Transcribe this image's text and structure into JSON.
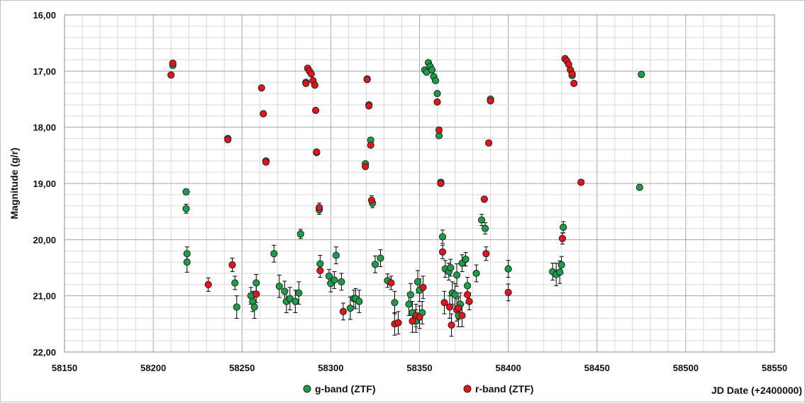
{
  "chart_data": {
    "type": "scatter",
    "title": "",
    "xlabel": "JD Date (+2400000)",
    "ylabel": "Magnitude (g/r)",
    "xlim": [
      58150,
      58550
    ],
    "ylim": [
      16,
      22
    ],
    "y_inverted": true,
    "x_ticks": [
      "58150",
      "58200",
      "58250",
      "58300",
      "58350",
      "58400",
      "58450",
      "58500",
      "58550"
    ],
    "y_ticks": [
      "16,00",
      "17,00",
      "18,00",
      "19,00",
      "20,00",
      "21,00",
      "22,00"
    ],
    "grid": true,
    "legend_position": "bottom-center",
    "colors": {
      "g": "#1a9e4a",
      "r": "#e3151a",
      "marker_edge": "#222222",
      "grid": "#bfbfbf"
    },
    "series": [
      {
        "name": "g-band (ZTF)",
        "color": "#1a9e4a",
        "points": [
          [
            58211,
            16.9,
            0
          ],
          [
            58218.5,
            19.15,
            0.05
          ],
          [
            58218.5,
            19.45,
            0.08
          ],
          [
            58219,
            20.25,
            0.12
          ],
          [
            58219,
            20.4,
            0.18
          ],
          [
            58242,
            18.2,
            0
          ],
          [
            58246,
            20.77,
            0.12
          ],
          [
            58247,
            21.2,
            0.2
          ],
          [
            58255,
            21.0,
            0.15
          ],
          [
            58256,
            21.1,
            0.18
          ],
          [
            58257,
            21.2,
            0.2
          ],
          [
            58258,
            20.77,
            0.15
          ],
          [
            58263.5,
            18.6,
            0
          ],
          [
            58268,
            20.25,
            0.15
          ],
          [
            58271,
            20.83,
            0.2
          ],
          [
            58274,
            20.92,
            0.18
          ],
          [
            58275,
            21.1,
            0.2
          ],
          [
            58277,
            21.05,
            0.2
          ],
          [
            58280,
            21.1,
            0.2
          ],
          [
            58282,
            20.95,
            0.2
          ],
          [
            58283,
            19.9,
            0.08
          ],
          [
            58286,
            17.2,
            0
          ],
          [
            58292,
            18.45,
            0
          ],
          [
            58293.5,
            19.47,
            0.08
          ],
          [
            58294,
            20.43,
            0.15
          ],
          [
            58299,
            20.65,
            0.12
          ],
          [
            58300,
            20.78,
            0.15
          ],
          [
            58302,
            20.72,
            0.15
          ],
          [
            58303,
            20.28,
            0.15
          ],
          [
            58306,
            20.75,
            0.15
          ],
          [
            58311,
            21.22,
            0.2
          ],
          [
            58313,
            21.05,
            0.15
          ],
          [
            58314,
            21.05,
            0.18
          ],
          [
            58316,
            21.1,
            0.2
          ],
          [
            58319.5,
            18.65,
            0
          ],
          [
            58320.5,
            17.14,
            0
          ],
          [
            58321.5,
            17.6,
            0
          ],
          [
            58322.5,
            18.23,
            0
          ],
          [
            58323.5,
            19.35,
            0.08
          ],
          [
            58325,
            20.44,
            0.15
          ],
          [
            58328,
            20.33,
            0.15
          ],
          [
            58332,
            20.73,
            0.12
          ],
          [
            58336,
            21.12,
            0.2
          ],
          [
            58344,
            21.15,
            0.2
          ],
          [
            58345,
            20.98,
            0.2
          ],
          [
            58346,
            21.3,
            0.2
          ],
          [
            58348,
            21.45,
            0.2
          ],
          [
            58349,
            20.75,
            0.2
          ],
          [
            58350,
            20.9,
            0.2
          ],
          [
            58351.5,
            21.3,
            0.2
          ],
          [
            58353,
            16.98,
            0
          ],
          [
            58354,
            17.02,
            0
          ],
          [
            58355,
            16.85,
            0
          ],
          [
            58356,
            16.92,
            0
          ],
          [
            58357,
            16.98,
            0
          ],
          [
            58358,
            17.1,
            0
          ],
          [
            58359,
            17.17,
            0
          ],
          [
            58360,
            17.4,
            0
          ],
          [
            58361,
            18.15,
            0
          ],
          [
            58362,
            18.98,
            0.05
          ],
          [
            58363,
            19.95,
            0.12
          ],
          [
            58364.5,
            20.52,
            0.15
          ],
          [
            58366.5,
            20.57,
            0.15
          ],
          [
            58367.5,
            20.5,
            0.15
          ],
          [
            58368.5,
            20.95,
            0.2
          ],
          [
            58370,
            20.98,
            0.2
          ],
          [
            58371,
            20.63,
            0.2
          ],
          [
            58372,
            21.35,
            0.2
          ],
          [
            58373,
            21.15,
            0.2
          ],
          [
            58374,
            20.42,
            0.15
          ],
          [
            58376,
            20.35,
            0.12
          ],
          [
            58377,
            20.82,
            0.15
          ],
          [
            58382,
            20.6,
            0.15
          ],
          [
            58385,
            19.65,
            0.1
          ],
          [
            58387,
            19.8,
            0.1
          ],
          [
            58390,
            17.5,
            0
          ],
          [
            58400,
            20.52,
            0.15
          ],
          [
            58425,
            20.57,
            0.15
          ],
          [
            58427,
            20.62,
            0.2
          ],
          [
            58429,
            20.58,
            0.2
          ],
          [
            58430,
            20.45,
            0.15
          ],
          [
            58431,
            19.78,
            0.1
          ],
          [
            58432,
            16.78,
            0
          ],
          [
            58436,
            17.08,
            0
          ],
          [
            58474,
            19.07,
            0.05
          ],
          [
            58475,
            17.06,
            0
          ]
        ]
      },
      {
        "name": "r-band (ZTF)",
        "color": "#e3151a",
        "points": [
          [
            58210,
            17.07,
            0
          ],
          [
            58211,
            16.86,
            0
          ],
          [
            58231,
            20.8,
            0.12
          ],
          [
            58242,
            18.22,
            0
          ],
          [
            58244.5,
            20.45,
            0.12
          ],
          [
            58258,
            20.97,
            0.15
          ],
          [
            58261,
            17.3,
            0
          ],
          [
            58262,
            17.76,
            0
          ],
          [
            58263.5,
            18.62,
            0
          ],
          [
            58286,
            17.22,
            0
          ],
          [
            58287,
            16.95,
            0
          ],
          [
            58288,
            17.0,
            0
          ],
          [
            58289,
            17.05,
            0
          ],
          [
            58290,
            17.17,
            0
          ],
          [
            58291,
            17.25,
            0
          ],
          [
            58291.5,
            17.7,
            0
          ],
          [
            58292,
            18.44,
            0
          ],
          [
            58293.5,
            19.43,
            0.08
          ],
          [
            58294,
            20.55,
            0.12
          ],
          [
            58307,
            21.28,
            0.15
          ],
          [
            58319.5,
            18.7,
            0
          ],
          [
            58320.5,
            17.15,
            0
          ],
          [
            58321.5,
            17.62,
            0
          ],
          [
            58322.5,
            18.32,
            0
          ],
          [
            58323,
            19.3,
            0.08
          ],
          [
            58334,
            20.77,
            0.12
          ],
          [
            58336,
            21.5,
            0.2
          ],
          [
            58338,
            21.48,
            0.2
          ],
          [
            58346,
            21.45,
            0.2
          ],
          [
            58348,
            21.35,
            0.2
          ],
          [
            58350,
            21.38,
            0.2
          ],
          [
            58352,
            20.85,
            0.2
          ],
          [
            58360,
            17.55,
            0
          ],
          [
            58361,
            18.05,
            0
          ],
          [
            58362,
            19.0,
            0.05
          ],
          [
            58363,
            20.22,
            0.12
          ],
          [
            58364,
            21.12,
            0.2
          ],
          [
            58367,
            21.2,
            0.2
          ],
          [
            58368,
            21.52,
            0.2
          ],
          [
            58371,
            21.25,
            0.2
          ],
          [
            58372,
            21.22,
            0.2
          ],
          [
            58374,
            21.35,
            0.2
          ],
          [
            58377,
            20.98,
            0.15
          ],
          [
            58378,
            21.1,
            0.15
          ],
          [
            58386.5,
            19.28,
            0.05
          ],
          [
            58387.5,
            20.25,
            0.12
          ],
          [
            58389,
            18.28,
            0
          ],
          [
            58390,
            17.53,
            0
          ],
          [
            58400,
            20.94,
            0.15
          ],
          [
            58430.5,
            19.98,
            0.1
          ],
          [
            58432,
            16.78,
            0
          ],
          [
            58433,
            16.82,
            0
          ],
          [
            58434,
            16.88,
            0
          ],
          [
            58435,
            16.98,
            0
          ],
          [
            58436,
            17.05,
            0
          ],
          [
            58437,
            17.22,
            0
          ],
          [
            58441,
            18.98,
            0.05
          ]
        ]
      }
    ]
  }
}
